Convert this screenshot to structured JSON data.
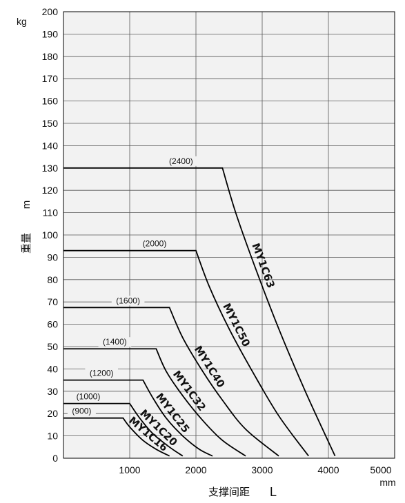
{
  "chart_data": {
    "type": "line",
    "title": "",
    "xlabel": "支撑间距",
    "xlabel_symbol": "L",
    "x_unit": "mm",
    "ylabel": "重量",
    "ylabel_symbol": "m",
    "y_unit": "kg",
    "xlim": [
      0,
      5000
    ],
    "ylim": [
      0,
      200
    ],
    "x_ticks": [
      1000,
      2000,
      3000,
      4000,
      5000
    ],
    "x_tick_labels": [
      "1000",
      "2000",
      "3000",
      "4000",
      "5000"
    ],
    "y_ticks": [
      0,
      10,
      20,
      30,
      40,
      50,
      60,
      70,
      80,
      90,
      100,
      110,
      120,
      130,
      140,
      150,
      160,
      170,
      180,
      190,
      200
    ],
    "y_tick_labels": [
      "0",
      "10",
      "20",
      "30",
      "40",
      "50",
      "60",
      "70",
      "80",
      "90",
      "100",
      "110",
      "120",
      "130",
      "140",
      "150",
      "160",
      "170",
      "180",
      "190",
      "200"
    ],
    "grid": true,
    "background": "#f2f2f2",
    "line_color": "#000000",
    "series": [
      {
        "name": "MY1C16",
        "bracket": "(900)",
        "points": [
          [
            0,
            18
          ],
          [
            900,
            18
          ],
          [
            1000,
            14
          ],
          [
            1200,
            8
          ],
          [
            1400,
            4
          ],
          [
            1600,
            1
          ]
        ]
      },
      {
        "name": "MY1C20",
        "bracket": "(1000)",
        "points": [
          [
            0,
            24.5
          ],
          [
            1000,
            24.5
          ],
          [
            1150,
            18
          ],
          [
            1350,
            11
          ],
          [
            1600,
            5
          ],
          [
            1800,
            1
          ]
        ]
      },
      {
        "name": "MY1C25",
        "bracket": "(1200)",
        "points": [
          [
            0,
            35
          ],
          [
            1200,
            35
          ],
          [
            1350,
            27
          ],
          [
            1550,
            18
          ],
          [
            1800,
            10
          ],
          [
            2050,
            4
          ],
          [
            2250,
            1
          ]
        ]
      },
      {
        "name": "MY1C32",
        "bracket": "(1400)",
        "points": [
          [
            0,
            49
          ],
          [
            1400,
            49
          ],
          [
            1550,
            39
          ],
          [
            1800,
            28
          ],
          [
            2100,
            17
          ],
          [
            2400,
            8
          ],
          [
            2750,
            1
          ]
        ]
      },
      {
        "name": "MY1C40",
        "bracket": "(1600)",
        "points": [
          [
            0,
            67.5
          ],
          [
            1600,
            67.5
          ],
          [
            1800,
            54
          ],
          [
            2100,
            39
          ],
          [
            2400,
            26
          ],
          [
            2750,
            13
          ],
          [
            3250,
            1
          ]
        ]
      },
      {
        "name": "MY1C50",
        "bracket": "(2000)",
        "points": [
          [
            0,
            93
          ],
          [
            2000,
            93
          ],
          [
            2200,
            77
          ],
          [
            2500,
            58
          ],
          [
            2850,
            39
          ],
          [
            3250,
            19
          ],
          [
            3700,
            1
          ]
        ]
      },
      {
        "name": "MY1C63",
        "bracket": "(2400)",
        "points": [
          [
            0,
            130
          ],
          [
            2400,
            130
          ],
          [
            2600,
            110
          ],
          [
            2900,
            85
          ],
          [
            3250,
            58
          ],
          [
            3650,
            30
          ],
          [
            4100,
            1
          ]
        ]
      }
    ]
  }
}
